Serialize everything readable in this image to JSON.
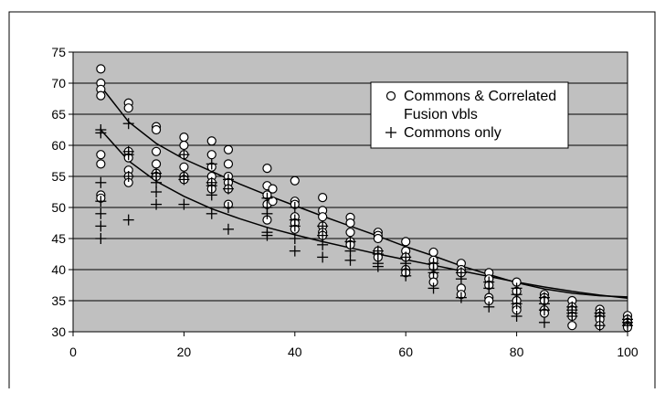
{
  "chart_data": {
    "type": "scatter",
    "title": "",
    "xlabel": "",
    "ylabel": "",
    "xlim": [
      0,
      100
    ],
    "ylim": [
      30,
      75
    ],
    "x_ticks": [
      0,
      20,
      40,
      60,
      80,
      100
    ],
    "y_ticks": [
      30,
      35,
      40,
      45,
      50,
      55,
      60,
      65,
      70,
      75
    ],
    "grid": "horizontal",
    "legend_position": "top-right",
    "plot_background": "#c0c0c0",
    "series": [
      {
        "name": "Commons & Correlated Fusion vbls",
        "marker": "circle",
        "points": [
          [
            5,
            72.3
          ],
          [
            5,
            70
          ],
          [
            5,
            69
          ],
          [
            5,
            68
          ],
          [
            5,
            58.5
          ],
          [
            5,
            57
          ],
          [
            5,
            52
          ],
          [
            5,
            51.5
          ],
          [
            10,
            66.8
          ],
          [
            10,
            66
          ],
          [
            10,
            59
          ],
          [
            10,
            58
          ],
          [
            10,
            56
          ],
          [
            10,
            55
          ],
          [
            10,
            54
          ],
          [
            15,
            63
          ],
          [
            15,
            62.5
          ],
          [
            15,
            59
          ],
          [
            15,
            57
          ],
          [
            15,
            55.5
          ],
          [
            15,
            55
          ],
          [
            20,
            61.3
          ],
          [
            20,
            60
          ],
          [
            20,
            58.5
          ],
          [
            20,
            56.5
          ],
          [
            20,
            55
          ],
          [
            20,
            54.5
          ],
          [
            25,
            60.7
          ],
          [
            25,
            58.5
          ],
          [
            25,
            56.5
          ],
          [
            25,
            55
          ],
          [
            25,
            54
          ],
          [
            25,
            53
          ],
          [
            28,
            59.3
          ],
          [
            28,
            57
          ],
          [
            28,
            55
          ],
          [
            28,
            54
          ],
          [
            28,
            53
          ],
          [
            28,
            50.5
          ],
          [
            35,
            56.3
          ],
          [
            35,
            53.5
          ],
          [
            35,
            52
          ],
          [
            35,
            50.5
          ],
          [
            35,
            48
          ],
          [
            36,
            53
          ],
          [
            36,
            51
          ],
          [
            40,
            54.3
          ],
          [
            40,
            51
          ],
          [
            40,
            50.5
          ],
          [
            40,
            48.5
          ],
          [
            40,
            47.5
          ],
          [
            40,
            46.5
          ],
          [
            45,
            51.6
          ],
          [
            45,
            49.5
          ],
          [
            45,
            48.5
          ],
          [
            45,
            47
          ],
          [
            45,
            46
          ],
          [
            45,
            45.5
          ],
          [
            50,
            48.4
          ],
          [
            50,
            47.5
          ],
          [
            50,
            46
          ],
          [
            50,
            44.5
          ],
          [
            50,
            44
          ],
          [
            55,
            46
          ],
          [
            55,
            45.5
          ],
          [
            55,
            45
          ],
          [
            55,
            43
          ],
          [
            55,
            42
          ],
          [
            60,
            44.5
          ],
          [
            60,
            43
          ],
          [
            60,
            42
          ],
          [
            60,
            40
          ],
          [
            60,
            39.5
          ],
          [
            65,
            42.8
          ],
          [
            65,
            41.5
          ],
          [
            65,
            40.5
          ],
          [
            65,
            39
          ],
          [
            65,
            38
          ],
          [
            70,
            41
          ],
          [
            70,
            40
          ],
          [
            70,
            39.5
          ],
          [
            70,
            37
          ],
          [
            70,
            36
          ],
          [
            75,
            39.5
          ],
          [
            75,
            38.5
          ],
          [
            75,
            37.5
          ],
          [
            75,
            35.5
          ],
          [
            75,
            35
          ],
          [
            80,
            38
          ],
          [
            80,
            36.5
          ],
          [
            80,
            35
          ],
          [
            80,
            34
          ],
          [
            80,
            33.5
          ],
          [
            85,
            36
          ],
          [
            85,
            35.5
          ],
          [
            85,
            35
          ],
          [
            85,
            33.5
          ],
          [
            85,
            33
          ],
          [
            90,
            35
          ],
          [
            90,
            34
          ],
          [
            90,
            33.5
          ],
          [
            90,
            32.5
          ],
          [
            90,
            31
          ],
          [
            95,
            33.6
          ],
          [
            95,
            33
          ],
          [
            95,
            32.5
          ],
          [
            95,
            32
          ],
          [
            95,
            31
          ],
          [
            100,
            32.6
          ],
          [
            100,
            32
          ],
          [
            100,
            31.5
          ],
          [
            100,
            31
          ],
          [
            100,
            30.7
          ]
        ]
      },
      {
        "name": "Commons only",
        "marker": "plus",
        "points": [
          [
            5,
            62.5
          ],
          [
            5,
            62
          ],
          [
            5,
            54
          ],
          [
            5,
            51
          ],
          [
            5,
            49
          ],
          [
            5,
            47
          ],
          [
            5,
            45
          ],
          [
            10,
            63.5
          ],
          [
            10,
            59
          ],
          [
            10,
            58.5
          ],
          [
            10,
            55
          ],
          [
            10,
            48
          ],
          [
            15,
            55.5
          ],
          [
            15,
            55
          ],
          [
            15,
            54
          ],
          [
            15,
            52.5
          ],
          [
            15,
            50.5
          ],
          [
            20,
            58.5
          ],
          [
            20,
            55
          ],
          [
            20,
            54.5
          ],
          [
            20,
            50.5
          ],
          [
            25,
            57
          ],
          [
            25,
            54
          ],
          [
            25,
            53.5
          ],
          [
            25,
            52
          ],
          [
            25,
            49
          ],
          [
            28,
            54.5
          ],
          [
            28,
            53
          ],
          [
            28,
            50
          ],
          [
            28,
            46.5
          ],
          [
            35,
            51.5
          ],
          [
            35,
            50
          ],
          [
            35,
            49
          ],
          [
            35,
            46
          ],
          [
            35,
            45.5
          ],
          [
            40,
            50
          ],
          [
            40,
            48
          ],
          [
            40,
            47
          ],
          [
            40,
            45
          ],
          [
            40,
            43
          ],
          [
            45,
            47
          ],
          [
            45,
            45.5
          ],
          [
            45,
            44
          ],
          [
            45,
            42
          ],
          [
            50,
            44.5
          ],
          [
            50,
            43
          ],
          [
            50,
            41.5
          ],
          [
            55,
            43
          ],
          [
            55,
            42.5
          ],
          [
            55,
            41
          ],
          [
            55,
            40.5
          ],
          [
            60,
            42
          ],
          [
            60,
            41
          ],
          [
            60,
            40
          ],
          [
            60,
            39
          ],
          [
            65,
            41
          ],
          [
            65,
            40
          ],
          [
            65,
            39.5
          ],
          [
            65,
            37
          ],
          [
            70,
            39.5
          ],
          [
            70,
            38.5
          ],
          [
            70,
            35.5
          ],
          [
            75,
            38
          ],
          [
            75,
            37
          ],
          [
            75,
            34
          ],
          [
            80,
            37
          ],
          [
            80,
            36
          ],
          [
            80,
            34.5
          ],
          [
            80,
            32.5
          ],
          [
            85,
            35.5
          ],
          [
            85,
            34.5
          ],
          [
            85,
            33.5
          ],
          [
            85,
            31.5
          ],
          [
            90,
            34
          ],
          [
            90,
            33.5
          ],
          [
            90,
            33
          ],
          [
            90,
            32.5
          ],
          [
            95,
            33
          ],
          [
            95,
            32.5
          ],
          [
            95,
            31
          ],
          [
            100,
            32
          ],
          [
            100,
            31.5
          ],
          [
            100,
            31
          ]
        ]
      }
    ],
    "trend_lines": [
      {
        "name": "Commons & Correlated Fusion vbls",
        "points": [
          [
            5,
            69.5
          ],
          [
            10,
            63.8
          ],
          [
            15,
            60.3
          ],
          [
            20,
            57.8
          ],
          [
            25,
            55.8
          ],
          [
            30,
            53.8
          ],
          [
            35,
            52
          ],
          [
            40,
            50.3
          ],
          [
            45,
            48.6
          ],
          [
            50,
            47
          ],
          [
            55,
            45.4
          ],
          [
            60,
            43.7
          ],
          [
            65,
            42.2
          ],
          [
            70,
            40.6
          ],
          [
            75,
            39.2
          ],
          [
            80,
            37.9
          ],
          [
            85,
            36.9
          ],
          [
            90,
            36.2
          ],
          [
            95,
            35.8
          ],
          [
            100,
            35.6
          ]
        ]
      },
      {
        "name": "Commons only",
        "points": [
          [
            5,
            62.5
          ],
          [
            10,
            57.5
          ],
          [
            15,
            54.2
          ],
          [
            20,
            51.8
          ],
          [
            25,
            49.8
          ],
          [
            30,
            48.2
          ],
          [
            35,
            46.8
          ],
          [
            40,
            45.6
          ],
          [
            45,
            44.5
          ],
          [
            50,
            43.5
          ],
          [
            55,
            42.5
          ],
          [
            60,
            41.6
          ],
          [
            65,
            40.7
          ],
          [
            70,
            39.8
          ],
          [
            75,
            38.9
          ],
          [
            80,
            38
          ],
          [
            85,
            37.2
          ],
          [
            90,
            36.5
          ],
          [
            95,
            35.9
          ],
          [
            100,
            35.4
          ]
        ]
      }
    ],
    "legend": {
      "entries": [
        {
          "marker": "circle",
          "lines": [
            "Commons & Correlated",
            "Fusion vbls"
          ]
        },
        {
          "marker": "plus",
          "lines": [
            "Commons only"
          ]
        }
      ]
    }
  }
}
